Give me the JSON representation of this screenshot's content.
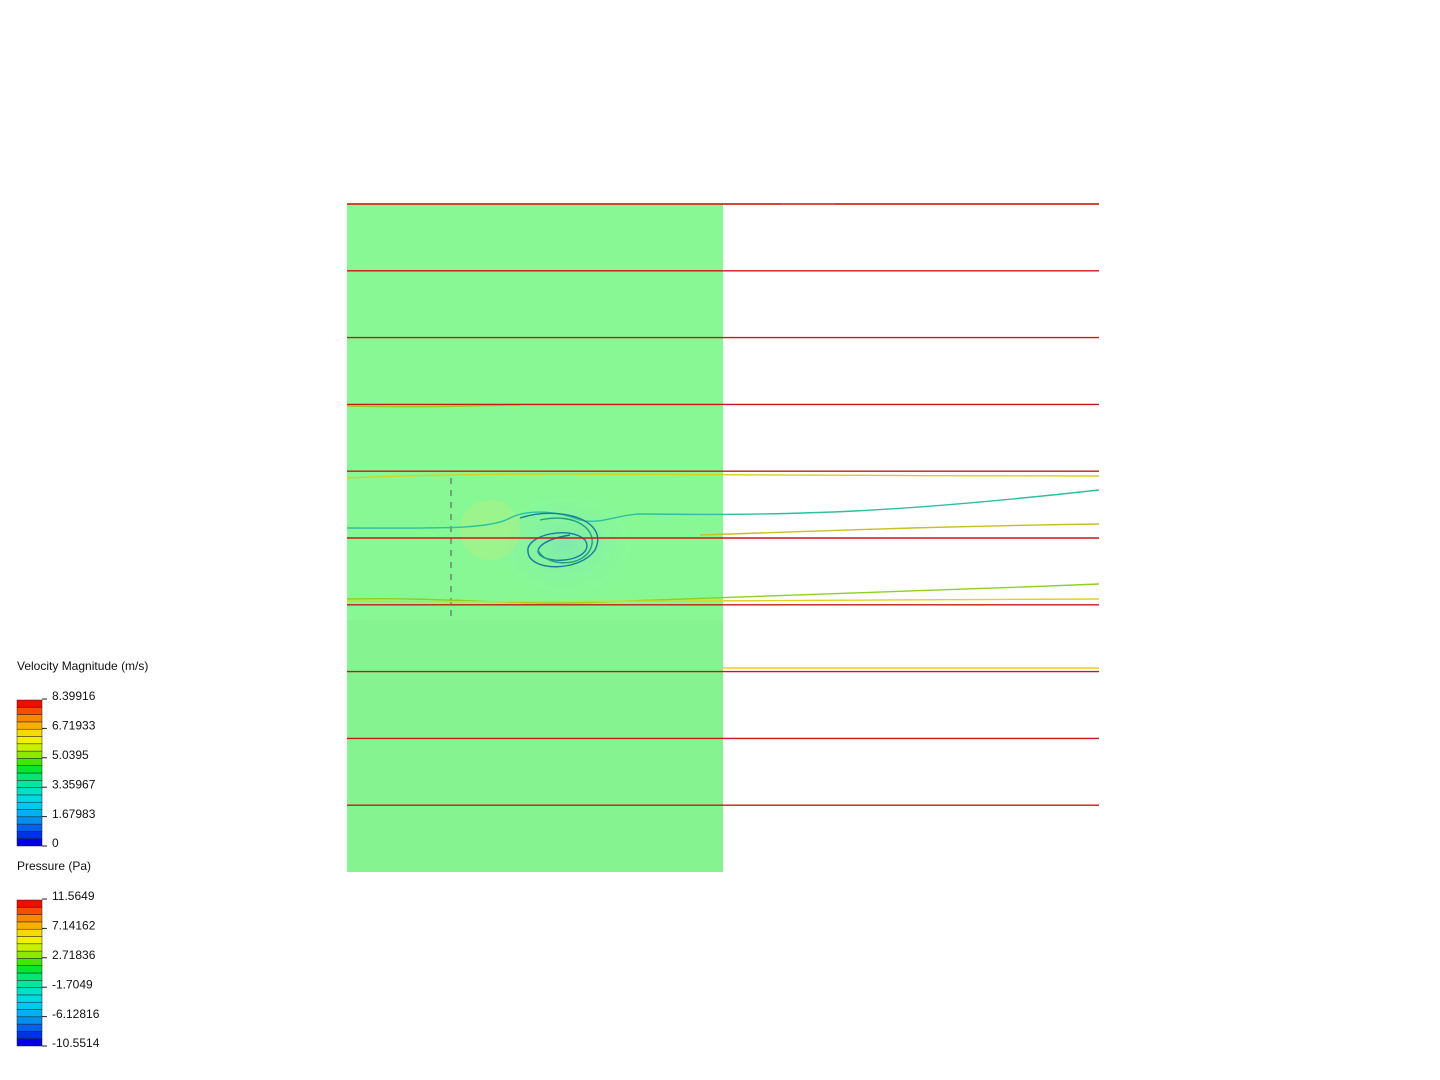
{
  "legends": [
    {
      "title": "Velocity Magnitude (m/s)",
      "labels": [
        "8.39916",
        "6.71933",
        "5.0395",
        "3.35967",
        "1.67983",
        "0"
      ]
    },
    {
      "title": "Pressure (Pa)",
      "labels": [
        "11.5649",
        "7.14162",
        "2.71836",
        "-1.7049",
        "-6.12816",
        "-10.5514"
      ]
    }
  ]
}
